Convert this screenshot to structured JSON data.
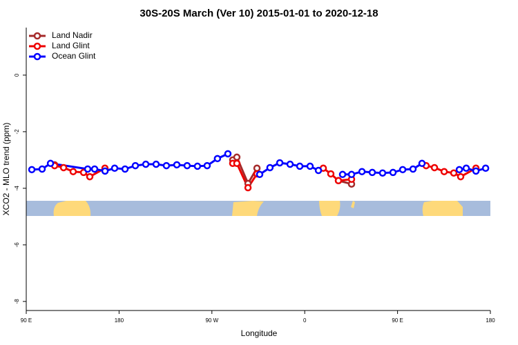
{
  "chart_data": {
    "type": "line",
    "title": "30S-20S March (Ver 10)   2015-01-01 to 2020-12-18",
    "x_label": "Longitude",
    "y_label": "XCO2 - MLO trend (ppm)",
    "xlim": [
      90,
      540
    ],
    "xticks": [
      {
        "value": 90,
        "label": "90 E"
      },
      {
        "value": 180,
        "label": "180"
      },
      {
        "value": 270,
        "label": "90 W"
      },
      {
        "value": 360,
        "label": "0"
      },
      {
        "value": 450,
        "label": "90 E"
      },
      {
        "value": 540,
        "label": "180"
      }
    ],
    "ylim": [
      -8.32,
      1.68
    ],
    "yticks": [
      -8,
      -6,
      -4,
      -2,
      0
    ],
    "legend": "top-left",
    "series": [
      {
        "name": "Land Nadir",
        "color": "#a52a2a",
        "x": [
          117.5,
          null,
          290.2,
          294.2,
          305,
          313.7,
          null,
          392.7,
          405.4
        ],
        "values": [
          -3.17,
          null,
          -3.0,
          -2.9,
          -3.83,
          -3.29,
          null,
          -3.73,
          -3.85
        ]
      },
      {
        "name": "Land Glint",
        "color": "#ee0000",
        "x": [
          117.5,
          126.2,
          135.5,
          145.6,
          151.6,
          166.3,
          null,
          290.2,
          294.2,
          305,
          313.7,
          null,
          378,
          385.3,
          392.7,
          405.4,
          null,
          477.7,
          485.8,
          495.2,
          504.5,
          511.2,
          526
        ],
        "values": [
          -3.2,
          -3.27,
          -3.41,
          -3.44,
          -3.59,
          -3.29,
          null,
          -3.12,
          -3.12,
          -3.98,
          -3.49,
          null,
          -3.29,
          -3.49,
          -3.73,
          -3.68,
          null,
          -3.2,
          -3.27,
          -3.41,
          -3.46,
          -3.59,
          -3.29
        ]
      },
      {
        "name": "Ocean Glint",
        "color": "#0000ff",
        "x": [
          95.4,
          105.4,
          113.5,
          149.6,
          156.3,
          166.4,
          175.7,
          185.8,
          195.8,
          205.9,
          215.9,
          225.9,
          236,
          246,
          256,
          265.4,
          275.4,
          285.5,
          null,
          316.3,
          326.3,
          335.8,
          345.8,
          355.2,
          365.2,
          373.3,
          null,
          396.7,
          405.4,
          415.5,
          425.5,
          435.5,
          445.6,
          455,
          465,
          473.7,
          null,
          509.9,
          516.6,
          526,
          535.4
        ],
        "values": [
          -3.34,
          -3.32,
          -3.12,
          -3.32,
          -3.32,
          -3.39,
          -3.29,
          -3.32,
          -3.2,
          -3.15,
          -3.15,
          -3.2,
          -3.17,
          -3.2,
          -3.22,
          -3.2,
          -2.95,
          -2.78,
          null,
          -3.51,
          -3.27,
          -3.1,
          -3.15,
          -3.22,
          -3.22,
          -3.37,
          null,
          -3.51,
          -3.51,
          -3.41,
          -3.44,
          -3.46,
          -3.44,
          -3.34,
          -3.32,
          -3.12,
          null,
          -3.34,
          -3.29,
          -3.39,
          -3.29
        ]
      }
    ]
  }
}
